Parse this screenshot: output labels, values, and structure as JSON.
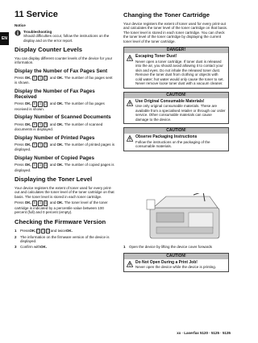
{
  "page": {
    "tab": "EN",
    "left": [
      {
        "h1": "11 Service"
      },
      {
        "label": "Notice"
      },
      {
        "note": {
          "title": "Troubleshooting",
          "text": "Should difficulties occur, follow the instructions on the display and on the error report."
        }
      },
      {
        "h2": "Display Counter Levels"
      },
      {
        "p": "You can display different counter levels of the device for your information."
      },
      {
        "h3": "Display the Number of Fax Pages Sent"
      },
      {
        "p": [
          "Press",
          {
            "bold": "OK,"
          },
          {
            "keys": [
              "9",
              "4",
              "1"
            ]
          },
          "and",
          {
            "bold": "OK."
          },
          "The number of fax pages sent is shown."
        ]
      },
      {
        "h3": "Display the Number of Fax Pages Received"
      },
      {
        "p": [
          "Press",
          {
            "bold": "OK,"
          },
          {
            "keys": [
              "9",
              "4",
              "2"
            ]
          },
          "and",
          {
            "bold": "OK."
          },
          "The number of fax pages received is shown."
        ]
      },
      {
        "h3": "Display Number of Scanned Documents"
      },
      {
        "p": [
          "Press",
          {
            "bold": "OK,"
          },
          {
            "keys": [
              "9",
              "4",
              "3"
            ]
          },
          "and",
          {
            "bold": "OK."
          },
          "The number of scanned documents is displayed."
        ]
      },
      {
        "h3": "Display Number of Printed Pages"
      },
      {
        "p": [
          "Press",
          {
            "bold": "OK,"
          },
          {
            "keys": [
              "9",
              "4",
              "4"
            ]
          },
          "and",
          {
            "bold": "OK."
          },
          "The number of printed pages is displayed."
        ]
      },
      {
        "h3": "Display Number of Copied Pages"
      },
      {
        "p": [
          "Press",
          {
            "bold": "OK,"
          },
          {
            "keys": [
              "9",
              "4",
              "5"
            ]
          },
          "and",
          {
            "bold": "OK."
          },
          "The number of copied pages is displayed."
        ]
      },
      {
        "h2": "Displaying the Toner Level"
      },
      {
        "p": "Your device registers the extent of toner used for every print-out and calculates the toner level of the toner cartridge on that basis. The toner level is stored in each toner cartridge."
      },
      {
        "p": [
          "Press",
          {
            "bold": "OK,"
          },
          {
            "keys": [
              "9",
              "4",
              "6"
            ]
          },
          "and",
          {
            "bold": "OK."
          },
          "The toner level of the toner cartridge is indicated by a percentile value between 100 percent (full) and 0 percent (empty)."
        ]
      },
      {
        "h2": "Checking the Firmware Version"
      },
      {
        "steps": [
          {
            "n": "1",
            "p": [
              "Press",
              {
                "bold": "OK,"
              },
              {
                "keys": [
                  "9",
                  "3",
                  "4"
                ]
              },
              "and twice",
              {
                "bold": "OK."
              }
            ]
          },
          {
            "n": "2",
            "p": "The information on the firmware version of the device is displayed."
          },
          {
            "n": "3",
            "p": [
              "Confirm with",
              {
                "bold": "OK."
              }
            ]
          }
        ]
      }
    ],
    "right_top": [
      {
        "h2": "Changing the Toner Cartridge"
      },
      {
        "p": "Your device registers the extent of toner used for every print-out and calculates the toner level of the toner cartridge on that basis. The toner level is stored in each toner cartridge. You can check the toner level of the toner cartridge by displaying the current toner level of the toner cartridge."
      },
      {
        "warn": {
          "level": "DANGER!",
          "title": "Escaping Toner Dust!",
          "text": "Never open a toner cartridge. If toner dust is released into the air, you should avoid allowing it to contact your skin and eyes. Do not inhale the released toner dust. Remove the toner dust from clothing or objects with cold water; hot water would only cause the toner to set. Never remove loose toner dust with a vacuum cleaner."
        }
      },
      {
        "warn": {
          "level": "CAUTION!",
          "title": "Use Original Consumable Materials!",
          "text": "Use only original consumable materials. These are available from a specialised retailer or through our order service. Other consumable materials can cause damage to the device."
        }
      },
      {
        "warn": {
          "level": "CAUTION!",
          "title": "Observe Packaging Instructions",
          "text": "Follow the instructions on the packaging of the consumable materials."
        }
      }
    ],
    "right_bottom": [
      {
        "steps": [
          {
            "n": "1",
            "p": "Open the device by lifting the device cover forwards"
          }
        ]
      },
      {
        "warn": {
          "level": "CAUTION!",
          "title": "Do Not Open During a Print Job!",
          "text": "Never open the device while the device is printing."
        }
      }
    ],
    "footer": "xx · Laserfax 5120 · 5125 · 5135"
  }
}
